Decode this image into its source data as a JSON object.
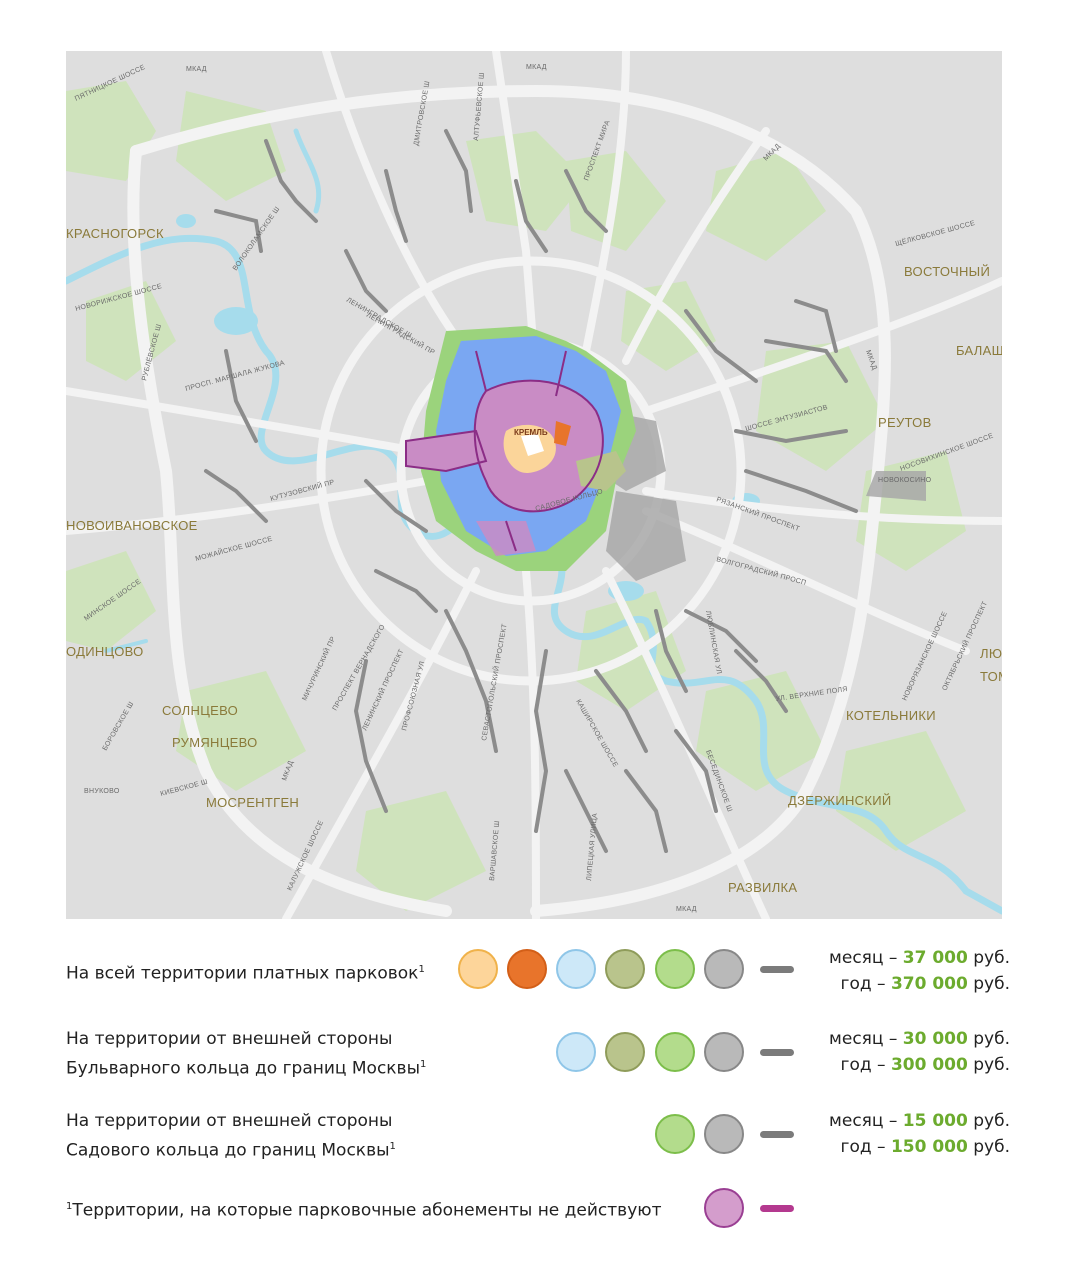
{
  "map": {
    "places": [
      {
        "id": "krasnogorsk",
        "text": "КРАСНОГОРСК"
      },
      {
        "id": "vostochny",
        "text": "ВОСТОЧНЫЙ"
      },
      {
        "id": "balash",
        "text": "БАЛАШ"
      },
      {
        "id": "reutov",
        "text": "РЕУТОВ"
      },
      {
        "id": "novokosino",
        "text": "НОВОКОСИНО"
      },
      {
        "id": "novoivanovskoe",
        "text": "НОВОИВАНОВСКОЕ"
      },
      {
        "id": "odintsovo",
        "text": "ОДИНЦОВО"
      },
      {
        "id": "solntsevo",
        "text": "СОЛНЦЕВО"
      },
      {
        "id": "rumyantsevo",
        "text": "РУМЯНЦЕВО"
      },
      {
        "id": "vnukovo",
        "text": "ВНУКОВО"
      },
      {
        "id": "mosrentgen",
        "text": "МОСРЕНТГЕН"
      },
      {
        "id": "kotelniki",
        "text": "КОТЕЛЬНИКИ"
      },
      {
        "id": "dzerzhinsky",
        "text": "ДЗЕРЖИНСКИЙ"
      },
      {
        "id": "razvilka",
        "text": "РАЗВИЛКА"
      },
      {
        "id": "lyu",
        "text": "ЛЮ"
      },
      {
        "id": "tom",
        "text": "ТОМ"
      },
      {
        "id": "kreml",
        "text": "КРЕМЛЬ"
      }
    ],
    "roads": [
      {
        "id": "pyatnitskoe",
        "text": "ПЯТНИЦКОЕ ШОССЕ"
      },
      {
        "id": "mkad_nw",
        "text": "МКАД"
      },
      {
        "id": "dmitrovskoe",
        "text": "ДМИТРОВСКОЕ Ш"
      },
      {
        "id": "altufevskoe",
        "text": "АЛТУФЬЕВСКОЕ Ш"
      },
      {
        "id": "mira",
        "text": "ПРОСПЕКТ МИРА"
      },
      {
        "id": "mkad_n",
        "text": "МКАД"
      },
      {
        "id": "mkad_ne",
        "text": "МКАД"
      },
      {
        "id": "volokolamskoe",
        "text": "ВОЛОКОЛАМСКОЕ Ш"
      },
      {
        "id": "leningradskoe",
        "text": "ЛЕНИНГРАДСКОЕ Ш"
      },
      {
        "id": "leningradsky",
        "text": "ЛЕНИНГРАДСКИЙ ПР"
      },
      {
        "id": "novorizhskoe",
        "text": "НОВОРИЖСКОЕ ШОССЕ"
      },
      {
        "id": "zhukova",
        "text": "ПРОСП. МАРШАЛА ЖУКОВА"
      },
      {
        "id": "rublevskoe",
        "text": "РУБЛЁВСКОЕ Ш"
      },
      {
        "id": "kutuzovsky",
        "text": "КУТУЗОВСКИЙ ПР"
      },
      {
        "id": "mozhayskoe",
        "text": "МОЖАЙСКОЕ ШОССЕ"
      },
      {
        "id": "minskoe",
        "text": "МИНСКОЕ ШОССЕ"
      },
      {
        "id": "michurinsky",
        "text": "МИЧУРИНСКИЙ ПР"
      },
      {
        "id": "vernadskogo",
        "text": "ПРОСПЕКТ ВЕРНАДСКОГО"
      },
      {
        "id": "leninsky",
        "text": "ЛЕНИНСКИЙ ПРОСПЕКТ"
      },
      {
        "id": "profsoyuznaya",
        "text": "ПРОФСОЮЗНАЯ УЛ"
      },
      {
        "id": "sevastopolsky",
        "text": "СЕВАСТОПОЛЬСКИЙ ПРОСПЕКТ"
      },
      {
        "id": "borovskoe",
        "text": "БОРОВСКОЕ Ш"
      },
      {
        "id": "kievskoe",
        "text": "КИЕВСКОЕ Ш"
      },
      {
        "id": "mkad_sw",
        "text": "МКАД"
      },
      {
        "id": "kaluzhskoe",
        "text": "КАЛУЖСКОЕ ШОССЕ"
      },
      {
        "id": "varshavskoe",
        "text": "ВАРШАВСКОЕ Ш"
      },
      {
        "id": "lipetskaya",
        "text": "ЛИПЕЦКАЯ УЛИЦА"
      },
      {
        "id": "kashirskoe",
        "text": "КАШИРСКОЕ ШОССЕ"
      },
      {
        "id": "besedinskoe",
        "text": "БЕСЕДИНСКОЕ Ш"
      },
      {
        "id": "mkad_s",
        "text": "МКАД"
      },
      {
        "id": "lyublinskaya",
        "text": "ЛЮБЛИНСКАЯ УЛ"
      },
      {
        "id": "verkhnie",
        "text": "УЛ. ВЕРХНИЕ ПОЛЯ"
      },
      {
        "id": "volgogradsky",
        "text": "ВОЛГОГРАДСКИЙ ПРОСП"
      },
      {
        "id": "ryazansky",
        "text": "РЯЗАНСКИЙ ПРОСПЕКТ"
      },
      {
        "id": "entuziastov",
        "text": "ШОССЕ ЭНТУЗИАСТОВ"
      },
      {
        "id": "nosovikhinskoe",
        "text": "НОСОВИХИНСКОЕ ШОССЕ"
      },
      {
        "id": "shchelkovskoe",
        "text": "ЩЁЛКОВСКОЕ ШОССЕ"
      },
      {
        "id": "novoryazanskoe",
        "text": "НОВОРЯЗАНСКОЕ ШОССЕ"
      },
      {
        "id": "oktyabrsky",
        "text": "ОКТЯБРЬСКИЙ ПРОСПЕКТ"
      },
      {
        "id": "mkad_e",
        "text": "МКАД"
      },
      {
        "id": "sadovaya",
        "text": "САДОВОЕ КОЛЬЦО"
      }
    ],
    "zone_colors": {
      "kremlin_ring": "#fbd59a",
      "orange": "#e8742b",
      "blue": "#7aa7f2",
      "olive": "#b8c48c",
      "green": "#9bd37c",
      "gray": "#a8a8a8",
      "purple": "#c98cc5",
      "water": "#a9e0ee",
      "park": "#c9dfb4"
    }
  },
  "legend": [
    {
      "id": "all",
      "lines": [
        "На всей территории платных парковок"
      ],
      "footnote": "1",
      "circles": [
        "#fdd59a",
        "#e8742b",
        "#cde8f8",
        "#b9c48c",
        "#b3dc8c",
        "#b9b9b9"
      ],
      "circle_borders": [
        "#f0b24a",
        "#d35f18",
        "#8fc6e8",
        "#8f9c5a",
        "#7cbe4a",
        "#888888"
      ],
      "month_label": "месяц –",
      "month_value": "37 000",
      "year_label": "год –",
      "year_value": "370 000",
      "currency": "руб."
    },
    {
      "id": "boulevard",
      "lines": [
        "На территории от внешней стороны",
        "Бульварного кольца до границ Москвы"
      ],
      "footnote": "1",
      "circles": [
        "#cde8f8",
        "#b9c48c",
        "#b3dc8c",
        "#b9b9b9"
      ],
      "circle_borders": [
        "#8fc6e8",
        "#8f9c5a",
        "#7cbe4a",
        "#888888"
      ],
      "month_label": "месяц –",
      "month_value": "30 000",
      "year_label": "год –",
      "year_value": "300 000",
      "currency": "руб."
    },
    {
      "id": "garden",
      "lines": [
        "На территории от внешней стороны",
        "Садового кольца до границ Москвы"
      ],
      "footnote": "1",
      "circles": [
        "#b3dc8c",
        "#b9b9b9"
      ],
      "circle_borders": [
        "#7cbe4a",
        "#888888"
      ],
      "month_label": "месяц –",
      "month_value": "15 000",
      "year_label": "год –",
      "year_value": "150 000",
      "currency": "руб."
    }
  ],
  "footnote": {
    "marker": "1",
    "text": "Территории, на которые парковочные абонементы не действуют",
    "circle": "#d49dcc",
    "circle_border": "#9a3f93",
    "dash": "#b4398f"
  },
  "dash_gray": "#7b7b7b"
}
